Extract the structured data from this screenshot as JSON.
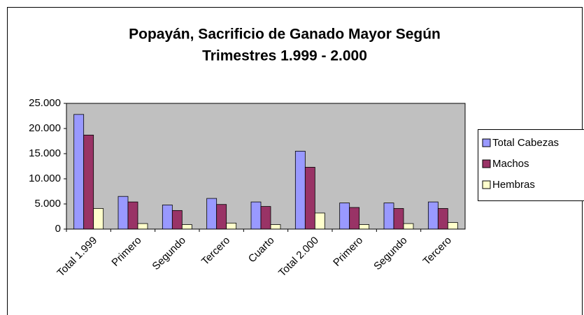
{
  "chart_data": {
    "type": "bar",
    "title_lines": [
      "Popayán, Sacrificio de Ganado Mayor Según",
      "Trimestres 1.999 - 2.000"
    ],
    "categories": [
      "Total 1.999",
      "Primero",
      "Segundo",
      "Tercero",
      "Cuarto",
      "Total 2.000",
      "Primero",
      "Segundo",
      "Tercero"
    ],
    "series": [
      {
        "name": "Total Cabezas",
        "color": "#9999ff",
        "values": [
          22800,
          6500,
          4800,
          6100,
          5400,
          15500,
          5200,
          5200,
          5400
        ]
      },
      {
        "name": "Machos",
        "color": "#993366",
        "values": [
          18700,
          5400,
          3700,
          4900,
          4500,
          12300,
          4300,
          4100,
          4100
        ]
      },
      {
        "name": "Hembras",
        "color": "#ffffcc",
        "values": [
          4100,
          1100,
          900,
          1200,
          900,
          3200,
          900,
          1100,
          1300
        ]
      }
    ],
    "ylim": [
      0,
      25000
    ],
    "yticks": [
      0,
      {
        "value": 5000,
        "label": "5.000"
      },
      {
        "value": 10000,
        "label": "10.000"
      },
      {
        "value": 15000,
        "label": "15.000"
      },
      {
        "value": 20000,
        "label": "20.000"
      },
      {
        "value": 25000,
        "label": "25.000"
      }
    ],
    "plot_background": "#c0c0c0",
    "legend": "right"
  }
}
